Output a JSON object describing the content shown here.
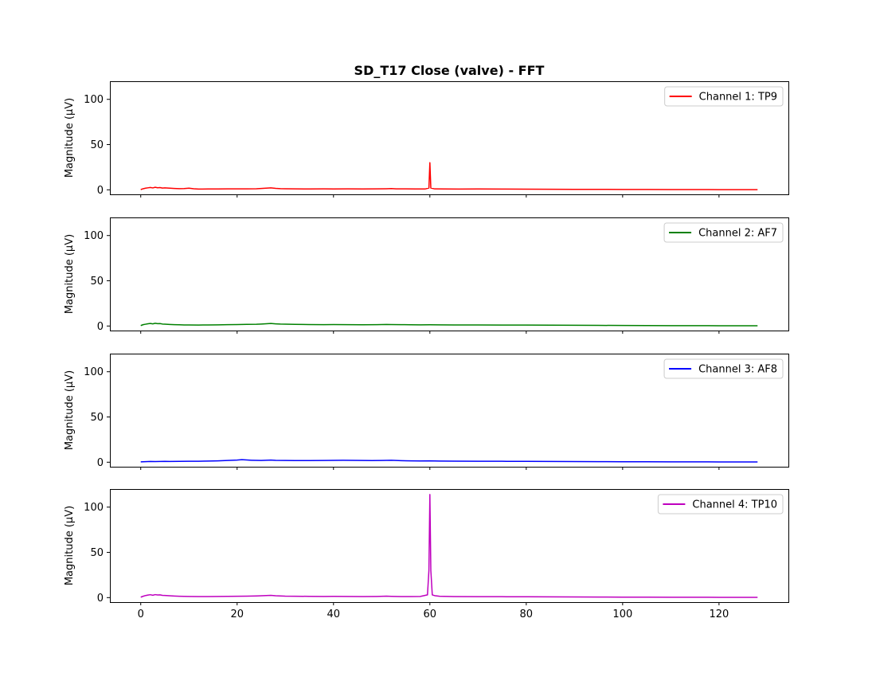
{
  "chart_data": {
    "type": "line",
    "title": "SD_T17 Close (valve) - FFT",
    "xlim": [
      -6.4,
      134.4
    ],
    "ylim": [
      -5,
      120
    ],
    "x_ticks": [
      0,
      20,
      40,
      60,
      80,
      100,
      120
    ],
    "y_ticks": [
      0,
      50,
      100
    ],
    "sharex": true,
    "legend_position": "upper-right",
    "panels": [
      {
        "ylabel": "Magnitude (μV)",
        "series_name": "Channel 1: TP9",
        "color": "#ff0000",
        "points": [
          [
            0,
            0.3
          ],
          [
            0.5,
            1.2
          ],
          [
            1,
            1.8
          ],
          [
            1.5,
            2.2
          ],
          [
            2,
            2.6
          ],
          [
            2.5,
            2.1
          ],
          [
            3,
            2.8
          ],
          [
            3.5,
            2.3
          ],
          [
            4,
            2.5
          ],
          [
            4.5,
            1.9
          ],
          [
            5,
            2.2
          ],
          [
            6,
            1.8
          ],
          [
            7,
            1.5
          ],
          [
            8,
            1.3
          ],
          [
            9,
            1.4
          ],
          [
            10,
            1.8
          ],
          [
            11,
            1.2
          ],
          [
            12,
            0.8
          ],
          [
            14,
            0.9
          ],
          [
            16,
            0.9
          ],
          [
            18,
            1.0
          ],
          [
            20,
            1.1
          ],
          [
            22,
            1.0
          ],
          [
            24,
            1.2
          ],
          [
            25,
            1.5
          ],
          [
            26,
            1.8
          ],
          [
            27,
            2.2
          ],
          [
            28,
            1.6
          ],
          [
            29,
            1.3
          ],
          [
            30,
            1.2
          ],
          [
            32,
            1.0
          ],
          [
            35,
            0.9
          ],
          [
            38,
            1.0
          ],
          [
            40,
            0.9
          ],
          [
            43,
            1.0
          ],
          [
            46,
            0.9
          ],
          [
            49,
            1.0
          ],
          [
            51,
            1.2
          ],
          [
            52,
            1.4
          ],
          [
            53,
            1.1
          ],
          [
            55,
            1.0
          ],
          [
            57,
            0.9
          ],
          [
            59,
            0.9
          ],
          [
            59.8,
            2
          ],
          [
            60,
            30
          ],
          [
            60.2,
            2
          ],
          [
            61,
            1.0
          ],
          [
            63,
            0.9
          ],
          [
            66,
            0.8
          ],
          [
            70,
            0.9
          ],
          [
            75,
            0.8
          ],
          [
            80,
            0.7
          ],
          [
            85,
            0.6
          ],
          [
            90,
            0.5
          ],
          [
            95,
            0.5
          ],
          [
            100,
            0.4
          ],
          [
            105,
            0.4
          ],
          [
            110,
            0.3
          ],
          [
            115,
            0.3
          ],
          [
            120,
            0.2
          ],
          [
            128,
            0.2
          ]
        ]
      },
      {
        "ylabel": "Magnitude (μV)",
        "series_name": "Channel 2: AF7",
        "color": "#008000",
        "points": [
          [
            0,
            0.5
          ],
          [
            0.5,
            1.5
          ],
          [
            1,
            2.0
          ],
          [
            1.5,
            2.5
          ],
          [
            2,
            2.8
          ],
          [
            2.5,
            2.4
          ],
          [
            3,
            3.0
          ],
          [
            3.5,
            2.6
          ],
          [
            4,
            2.7
          ],
          [
            4.5,
            2.2
          ],
          [
            5,
            2.0
          ],
          [
            6,
            1.7
          ],
          [
            7,
            1.5
          ],
          [
            8,
            1.4
          ],
          [
            9,
            1.2
          ],
          [
            10,
            1.2
          ],
          [
            12,
            1.1
          ],
          [
            14,
            1.2
          ],
          [
            16,
            1.3
          ],
          [
            18,
            1.5
          ],
          [
            20,
            1.6
          ],
          [
            22,
            1.8
          ],
          [
            24,
            1.9
          ],
          [
            25,
            2.2
          ],
          [
            26,
            2.5
          ],
          [
            27,
            2.8
          ],
          [
            28,
            2.4
          ],
          [
            29,
            2.1
          ],
          [
            30,
            2.0
          ],
          [
            32,
            1.8
          ],
          [
            35,
            1.6
          ],
          [
            38,
            1.5
          ],
          [
            40,
            1.6
          ],
          [
            43,
            1.5
          ],
          [
            46,
            1.4
          ],
          [
            49,
            1.5
          ],
          [
            51,
            1.7
          ],
          [
            52,
            1.6
          ],
          [
            54,
            1.5
          ],
          [
            56,
            1.4
          ],
          [
            58,
            1.3
          ],
          [
            60,
            1.4
          ],
          [
            62,
            1.3
          ],
          [
            65,
            1.2
          ],
          [
            70,
            1.2
          ],
          [
            75,
            1.1
          ],
          [
            80,
            1.0
          ],
          [
            85,
            0.9
          ],
          [
            90,
            0.8
          ],
          [
            95,
            0.7
          ],
          [
            100,
            0.6
          ],
          [
            105,
            0.5
          ],
          [
            110,
            0.4
          ],
          [
            115,
            0.4
          ],
          [
            120,
            0.3
          ],
          [
            128,
            0.3
          ]
        ]
      },
      {
        "ylabel": "Magnitude (μV)",
        "series_name": "Channel 3: AF8",
        "color": "#0000ff",
        "points": [
          [
            0,
            0.4
          ],
          [
            1,
            0.6
          ],
          [
            2,
            0.8
          ],
          [
            3,
            0.7
          ],
          [
            4,
            0.8
          ],
          [
            5,
            0.9
          ],
          [
            6,
            0.8
          ],
          [
            8,
            0.9
          ],
          [
            10,
            1.0
          ],
          [
            12,
            1.1
          ],
          [
            14,
            1.3
          ],
          [
            16,
            1.5
          ],
          [
            18,
            1.9
          ],
          [
            20,
            2.4
          ],
          [
            21,
            2.8
          ],
          [
            22,
            2.5
          ],
          [
            23,
            2.2
          ],
          [
            24,
            2.0
          ],
          [
            25,
            1.9
          ],
          [
            26,
            2.2
          ],
          [
            27,
            2.4
          ],
          [
            28,
            2.0
          ],
          [
            30,
            1.9
          ],
          [
            32,
            1.8
          ],
          [
            35,
            1.8
          ],
          [
            38,
            1.9
          ],
          [
            40,
            2.0
          ],
          [
            42,
            2.1
          ],
          [
            44,
            2.0
          ],
          [
            46,
            1.9
          ],
          [
            48,
            1.8
          ],
          [
            50,
            1.9
          ],
          [
            52,
            2.1
          ],
          [
            54,
            1.7
          ],
          [
            56,
            1.5
          ],
          [
            58,
            1.4
          ],
          [
            60,
            1.5
          ],
          [
            62,
            1.3
          ],
          [
            65,
            1.2
          ],
          [
            70,
            1.1
          ],
          [
            75,
            1.0
          ],
          [
            80,
            0.9
          ],
          [
            85,
            0.8
          ],
          [
            90,
            0.7
          ],
          [
            95,
            0.6
          ],
          [
            100,
            0.5
          ],
          [
            105,
            0.5
          ],
          [
            110,
            0.4
          ],
          [
            115,
            0.4
          ],
          [
            120,
            0.3
          ],
          [
            128,
            0.3
          ]
        ]
      },
      {
        "ylabel": "Magnitude (μV)",
        "series_name": "Channel 4: TP10",
        "color": "#bf00bf",
        "points": [
          [
            0,
            0.5
          ],
          [
            0.5,
            1.5
          ],
          [
            1,
            2.3
          ],
          [
            1.5,
            2.8
          ],
          [
            2,
            3.2
          ],
          [
            2.5,
            2.6
          ],
          [
            3,
            3.3
          ],
          [
            3.5,
            2.9
          ],
          [
            4,
            3.0
          ],
          [
            4.5,
            2.5
          ],
          [
            5,
            2.4
          ],
          [
            6,
            2.0
          ],
          [
            7,
            1.7
          ],
          [
            8,
            1.5
          ],
          [
            9,
            1.4
          ],
          [
            10,
            1.3
          ],
          [
            12,
            1.2
          ],
          [
            14,
            1.2
          ],
          [
            16,
            1.3
          ],
          [
            18,
            1.4
          ],
          [
            20,
            1.5
          ],
          [
            22,
            1.6
          ],
          [
            24,
            1.8
          ],
          [
            25,
            2.0
          ],
          [
            26,
            2.3
          ],
          [
            27,
            2.5
          ],
          [
            28,
            2.0
          ],
          [
            29,
            1.8
          ],
          [
            30,
            1.6
          ],
          [
            32,
            1.5
          ],
          [
            35,
            1.4
          ],
          [
            38,
            1.3
          ],
          [
            40,
            1.4
          ],
          [
            43,
            1.3
          ],
          [
            46,
            1.2
          ],
          [
            49,
            1.3
          ],
          [
            51,
            1.6
          ],
          [
            52,
            1.4
          ],
          [
            54,
            1.2
          ],
          [
            56,
            1.2
          ],
          [
            58,
            1.3
          ],
          [
            59.5,
            3
          ],
          [
            59.8,
            30
          ],
          [
            60,
            114
          ],
          [
            60.2,
            30
          ],
          [
            60.5,
            3
          ],
          [
            61,
            2.2
          ],
          [
            62,
            1.5
          ],
          [
            65,
            1.2
          ],
          [
            70,
            1.1
          ],
          [
            75,
            1.0
          ],
          [
            80,
            0.9
          ],
          [
            85,
            0.8
          ],
          [
            90,
            0.7
          ],
          [
            95,
            0.6
          ],
          [
            100,
            0.5
          ],
          [
            105,
            0.5
          ],
          [
            110,
            0.4
          ],
          [
            115,
            0.4
          ],
          [
            120,
            0.3
          ],
          [
            128,
            0.3
          ]
        ]
      }
    ]
  }
}
